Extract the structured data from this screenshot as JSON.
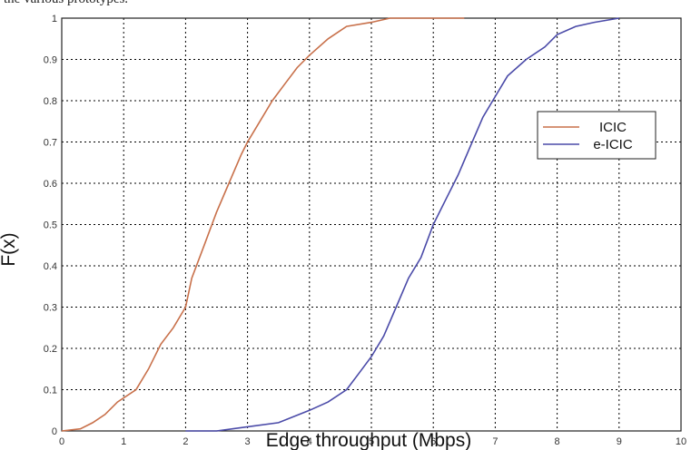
{
  "page": {
    "top_caption": "the various prototypes."
  },
  "chart_data": {
    "type": "line",
    "title": "",
    "xlabel": "Edge throughput (Mbps)",
    "ylabel": "F(x)",
    "xlim": [
      0,
      10
    ],
    "ylim": [
      0,
      1
    ],
    "xticks": [
      "0",
      "1",
      "2",
      "3",
      "4",
      "5",
      "6",
      "7",
      "8",
      "9",
      "10"
    ],
    "yticks": [
      "0",
      "0.1",
      "0.2",
      "0.3",
      "0.4",
      "0.5",
      "0.6",
      "0.7",
      "0.8",
      "0.9",
      "1"
    ],
    "grid": true,
    "legend_position": "right",
    "series": [
      {
        "name": "ICIC",
        "color": "#c8704a",
        "x": [
          0,
          0.3,
          0.5,
          0.7,
          0.9,
          1.2,
          1.4,
          1.6,
          1.8,
          2.0,
          2.1,
          2.3,
          2.5,
          2.7,
          2.9,
          3.0,
          3.2,
          3.4,
          3.6,
          3.8,
          4.0,
          4.3,
          4.6,
          5.0,
          5.3,
          5.5,
          6.0,
          6.5
        ],
        "y": [
          0,
          0.005,
          0.02,
          0.04,
          0.07,
          0.1,
          0.15,
          0.21,
          0.25,
          0.3,
          0.37,
          0.45,
          0.53,
          0.6,
          0.67,
          0.7,
          0.75,
          0.8,
          0.84,
          0.88,
          0.91,
          0.95,
          0.98,
          0.99,
          1.0,
          1.0,
          1.0,
          1.0
        ]
      },
      {
        "name": "e-ICIC",
        "color": "#4a4aa8",
        "x": [
          2.0,
          2.5,
          3.0,
          3.5,
          4.0,
          4.3,
          4.6,
          4.8,
          5.0,
          5.2,
          5.4,
          5.6,
          5.8,
          6.0,
          6.2,
          6.4,
          6.6,
          6.8,
          7.0,
          7.2,
          7.5,
          7.8,
          8.0,
          8.3,
          8.6,
          9.0
        ],
        "y": [
          0.0,
          0.0,
          0.01,
          0.02,
          0.05,
          0.07,
          0.1,
          0.14,
          0.18,
          0.23,
          0.3,
          0.37,
          0.42,
          0.5,
          0.56,
          0.62,
          0.69,
          0.76,
          0.81,
          0.86,
          0.9,
          0.93,
          0.96,
          0.98,
          0.99,
          1.0
        ]
      }
    ]
  }
}
